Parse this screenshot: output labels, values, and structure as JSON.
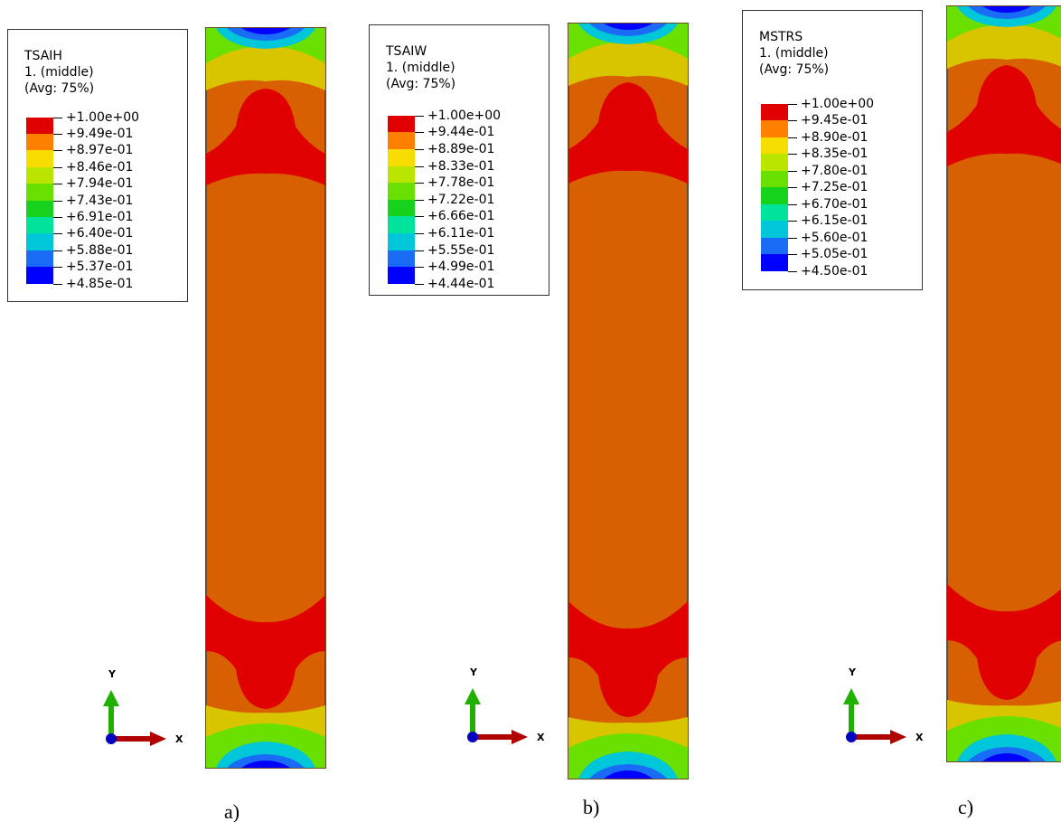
{
  "colors": {
    "c1": "#0000ff",
    "c2": "#1a6cf7",
    "c3": "#00c6d9",
    "c4": "#00e39a",
    "c5": "#16d21c",
    "c6": "#6ae000",
    "c7": "#b9e500",
    "c8": "#f7dc00",
    "c9": "#ff8000",
    "c10": "#d96000",
    "c11": "#e00000",
    "body": "#d96000",
    "peak": "#e00000",
    "ends": "#d9c400"
  },
  "panels": [
    {
      "label": "a)",
      "legend": {
        "title": "TSAIH",
        "subtitle": "1. (middle)",
        "avg": "(Avg: 75%)",
        "values": [
          "+1.00e+00",
          "+9.49e-01",
          "+8.97e-01",
          "+8.46e-01",
          "+7.94e-01",
          "+7.43e-01",
          "+6.91e-01",
          "+6.40e-01",
          "+5.88e-01",
          "+5.37e-01",
          "+4.85e-01"
        ]
      },
      "triad": {
        "y": "Y",
        "x": "X"
      }
    },
    {
      "label": "b)",
      "legend": {
        "title": "TSAIW",
        "subtitle": "1. (middle)",
        "avg": "(Avg: 75%)",
        "values": [
          "+1.00e+00",
          "+9.44e-01",
          "+8.89e-01",
          "+8.33e-01",
          "+7.78e-01",
          "+7.22e-01",
          "+6.66e-01",
          "+6.11e-01",
          "+5.55e-01",
          "+4.99e-01",
          "+4.44e-01"
        ]
      },
      "triad": {
        "y": "Y",
        "x": "X"
      }
    },
    {
      "label": "c)",
      "legend": {
        "title": "MSTRS",
        "subtitle": "1. (middle)",
        "avg": "(Avg: 75%)",
        "values": [
          "+1.00e+00",
          "+9.45e-01",
          "+8.90e-01",
          "+8.35e-01",
          "+7.80e-01",
          "+7.25e-01",
          "+6.70e-01",
          "+6.15e-01",
          "+5.60e-01",
          "+5.05e-01",
          "+4.50e-01"
        ]
      },
      "triad": {
        "y": "Y",
        "x": "X"
      }
    }
  ]
}
